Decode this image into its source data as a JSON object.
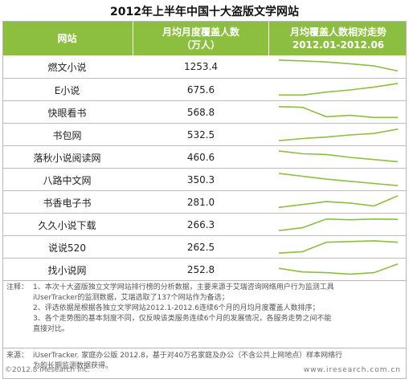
{
  "title": "2012年上半年中国十大盗版文学网站",
  "header": {
    "col_site": "网站",
    "col_value_line1": "月均月度覆盖人数",
    "col_value_line2": "（万人）",
    "col_trend_line1": "月均覆盖人数相对走势",
    "col_trend_line2": "2012.01-2012.06"
  },
  "chart_data": {
    "type": "table",
    "columns": [
      "网站",
      "月均月度覆盖人数（万人）",
      "月均覆盖人数相对走势 2012.01-2012.06"
    ],
    "value_unit": "万人",
    "rows": [
      {
        "site": "燃文小说",
        "value": "1253.4",
        "trend": [
          0.95,
          0.9,
          0.82,
          0.7,
          0.55,
          0.2
        ]
      },
      {
        "site": "E小说",
        "value": "675.6",
        "trend": [
          0.15,
          0.15,
          0.35,
          0.5,
          0.7,
          0.95
        ]
      },
      {
        "site": "快眼看书",
        "value": "568.8",
        "trend": [
          0.9,
          0.85,
          0.2,
          0.3,
          0.15,
          0.15
        ]
      },
      {
        "site": "书包网",
        "value": "532.5",
        "trend": [
          0.1,
          0.25,
          0.35,
          0.5,
          0.6,
          0.9
        ]
      },
      {
        "site": "落秋小说阅读网",
        "value": "460.6",
        "trend": [
          0.95,
          0.75,
          0.7,
          0.5,
          0.35,
          0.2
        ]
      },
      {
        "site": "八路中文网",
        "value": "350.3",
        "trend": [
          0.95,
          0.75,
          0.55,
          0.4,
          0.25,
          0.1
        ]
      },
      {
        "site": "书香电子书",
        "value": "281.0",
        "trend": [
          0.15,
          0.35,
          0.55,
          0.45,
          0.25,
          0.95
        ]
      },
      {
        "site": "久久小说下载",
        "value": "266.3",
        "trend": [
          0.1,
          0.3,
          0.9,
          0.85,
          0.9,
          0.88
        ]
      },
      {
        "site": "说说520",
        "value": "262.5",
        "trend": [
          0.1,
          0.2,
          0.85,
          0.9,
          0.95,
          0.85
        ]
      },
      {
        "site": "找小说网",
        "value": "252.8",
        "trend": [
          0.6,
          0.35,
          0.3,
          0.2,
          0.3,
          0.9
        ]
      }
    ]
  },
  "notes": {
    "label": "注释：",
    "line1": "1、本次十大盗版独立文学网站排行榜的分析数据，主要来源于艾瑞咨询网络用户行为监测工具",
    "line2": "iUserTracker的监测数据，艾瑞选取了137个网站作为备选；",
    "line3": "2、评选依据是根据各独立文学网站2012.1-2012.6连续6个月的月均月度覆盖人数排序；",
    "line4": "3、各个走势图的基本刻度不同，仅反映该类服务连续6个月的发展情况，各服务走势之间不能",
    "line5": "直接对比。"
  },
  "source": {
    "label": "来源：",
    "line1": "iUserTracker. 家庭办公版 2012.8，基于对40万名家庭及办公（不含公共上网地点）样本网络行",
    "line2": "为的长期监测数据获得。"
  },
  "footer": {
    "copyright": "©2012.8 iResearch Inc.",
    "website": "www.iresearch.com.cn"
  },
  "colors": {
    "header_bg": "#8cbf3f",
    "trend_line": "#8cbf3f"
  }
}
